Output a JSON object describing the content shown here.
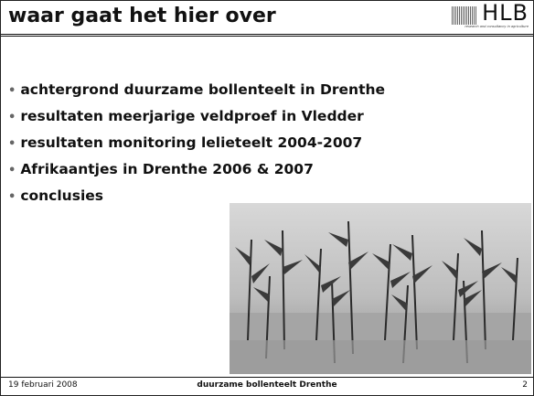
{
  "header": {
    "title": "waar gaat het hier over",
    "logo": "HLB",
    "logo_tagline": "research and consultancy in agriculture"
  },
  "bullets": [
    "achtergrond duurzame bollenteelt in Drenthe",
    "resultaten meerjarige veldproef in Vledder",
    "resultaten monitoring lelieteelt 2004-2007",
    "Afrikaantjes in Drenthe 2006 & 2007",
    "conclusies"
  ],
  "footer": {
    "date": "19 februari 2008",
    "center": "duurzame bollenteelt Drenthe",
    "page": "2"
  }
}
